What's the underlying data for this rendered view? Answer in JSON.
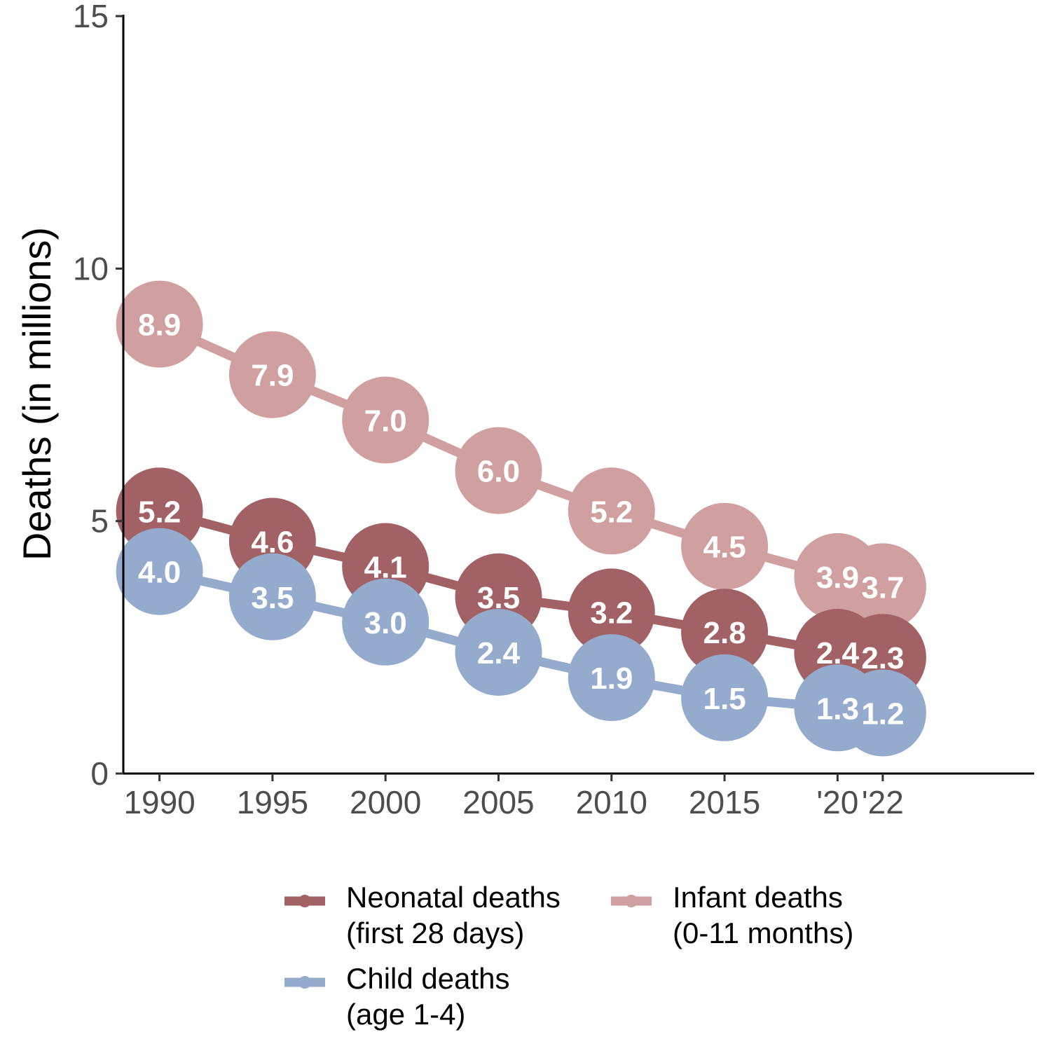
{
  "chart_data": {
    "type": "line",
    "title": "",
    "xlabel": "",
    "ylabel": "Deaths (in millions)",
    "ylim": [
      0,
      15
    ],
    "yticks": [
      0,
      5,
      10,
      15
    ],
    "x": [
      1990,
      1995,
      2000,
      2005,
      2010,
      2015,
      2020,
      2022
    ],
    "xlim": [
      1988.4,
      2028.7
    ],
    "xtick_labels": [
      "1990",
      "1995",
      "2000",
      "2005",
      "2010",
      "2015",
      "'20",
      "'22"
    ],
    "grid": false,
    "legend_position": "bottom",
    "series": [
      {
        "key": "neonatal",
        "name": "Neonatal deaths\n(first 28 days)",
        "color": "#a26265",
        "values": [
          5.2,
          4.6,
          4.1,
          3.5,
          3.2,
          2.8,
          2.4,
          2.3
        ],
        "labels": [
          "5.2",
          "4.6",
          "4.1",
          "3.5",
          "3.2",
          "2.8",
          "2.4",
          "2.3"
        ]
      },
      {
        "key": "infant",
        "name": "Infant deaths\n(0-11 months)",
        "color": "#d09fa0",
        "values": [
          8.9,
          7.9,
          7.0,
          6.0,
          5.2,
          4.5,
          3.9,
          3.7
        ],
        "labels": [
          "8.9",
          "7.9",
          "7.0",
          "6.0",
          "5.2",
          "4.5",
          "3.9",
          "3.7"
        ]
      },
      {
        "key": "child",
        "name": "Child deaths\n(age 1-4)",
        "color": "#95abcd",
        "values": [
          4.0,
          3.5,
          3.0,
          2.4,
          1.9,
          1.5,
          1.3,
          1.2
        ],
        "labels": [
          "4.0",
          "3.5",
          "3.0",
          "2.4",
          "1.9",
          "1.5",
          "1.3",
          "1.2"
        ]
      }
    ],
    "draw_order": [
      "infant",
      "neonatal",
      "child"
    ],
    "legend_order": [
      "neonatal",
      "infant",
      "child"
    ]
  }
}
